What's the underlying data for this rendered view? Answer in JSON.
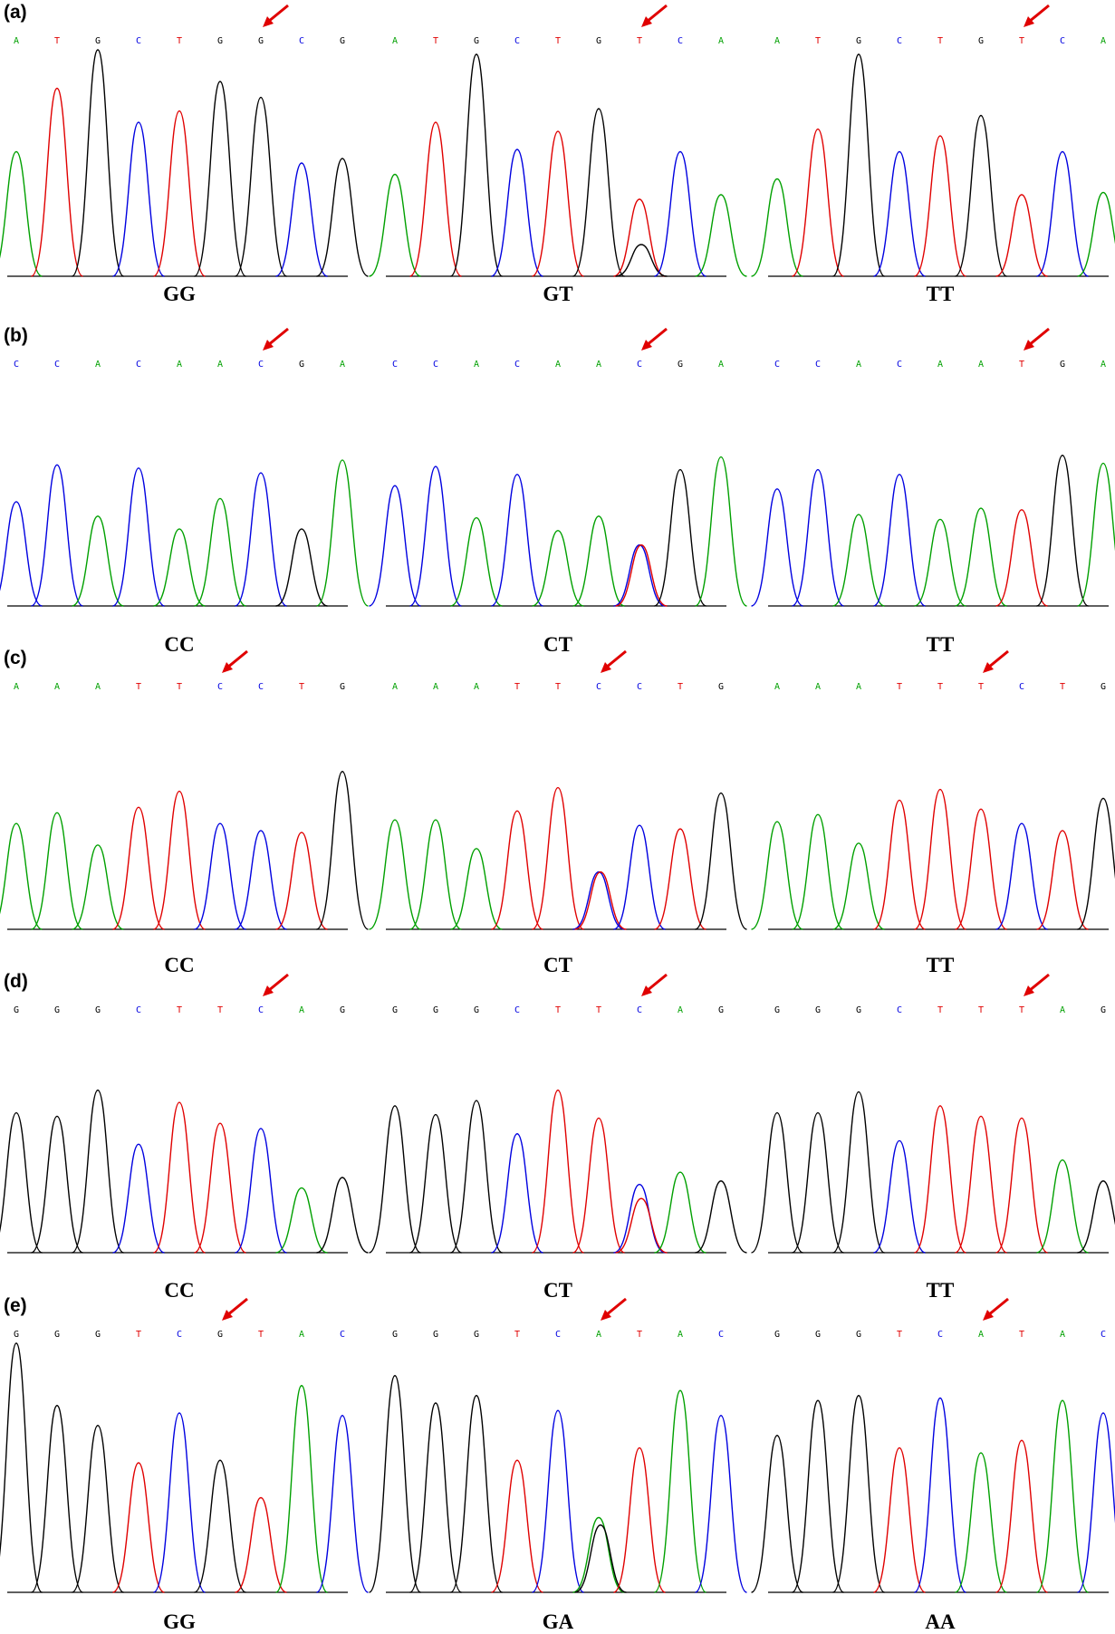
{
  "colors": {
    "A": "#00a000",
    "C": "#0000e0",
    "G": "#000000",
    "T": "#e00000",
    "arrow": "#e00000"
  },
  "rows": [
    {
      "label": "(a)",
      "panels": [
        {
          "bases": [
            "A",
            "T",
            "G",
            "C",
            "T",
            "G",
            "G",
            "C",
            "G"
          ],
          "snp": 6,
          "genotype": "GG",
          "peaks": [
            [
              "A",
              0.55
            ],
            [
              "T",
              0.83
            ],
            [
              "G",
              1.0
            ],
            [
              "C",
              0.68
            ],
            [
              "T",
              0.73
            ],
            [
              "G",
              0.86
            ],
            [
              "G",
              0.79
            ],
            [
              "C",
              0.5
            ],
            [
              "G",
              0.52
            ]
          ]
        },
        {
          "bases": [
            "A",
            "T",
            "G",
            "C",
            "T",
            "G",
            "T",
            "C",
            "A"
          ],
          "snp": 6,
          "genotype": "GT",
          "peaks": [
            [
              "A",
              0.45
            ],
            [
              "T",
              0.68
            ],
            [
              "G",
              0.98
            ],
            [
              "C",
              0.56
            ],
            [
              "T",
              0.64
            ],
            [
              "G",
              0.74
            ],
            [
              "T",
              0.34
            ],
            [
              "G",
              0.14
            ],
            [
              "C",
              0.55
            ],
            [
              "A",
              0.36
            ]
          ]
        },
        {
          "bases": [
            "A",
            "T",
            "G",
            "C",
            "T",
            "G",
            "T",
            "C",
            "A"
          ],
          "snp": 6,
          "genotype": "TT",
          "peaks": [
            [
              "A",
              0.43
            ],
            [
              "T",
              0.65
            ],
            [
              "G",
              0.98
            ],
            [
              "C",
              0.55
            ],
            [
              "T",
              0.62
            ],
            [
              "G",
              0.71
            ],
            [
              "T",
              0.36
            ],
            [
              "C",
              0.55
            ],
            [
              "A",
              0.37
            ]
          ]
        }
      ]
    },
    {
      "label": "(b)",
      "panels": [
        {
          "bases": [
            "C",
            "C",
            "A",
            "C",
            "A",
            "A",
            "C",
            "G",
            "A"
          ],
          "snp": 6,
          "genotype": "CC",
          "peaks": [
            [
              "C",
              0.65
            ],
            [
              "C",
              0.88
            ],
            [
              "A",
              0.56
            ],
            [
              "C",
              0.86
            ],
            [
              "A",
              0.48
            ],
            [
              "A",
              0.67
            ],
            [
              "C",
              0.83
            ],
            [
              "G",
              0.48
            ],
            [
              "A",
              0.91
            ]
          ]
        },
        {
          "bases": [
            "C",
            "C",
            "A",
            "C",
            "A",
            "A",
            "C",
            "G",
            "A"
          ],
          "snp": 6,
          "genotype": "CT",
          "peaks": [
            [
              "C",
              0.75
            ],
            [
              "C",
              0.87
            ],
            [
              "A",
              0.55
            ],
            [
              "C",
              0.82
            ],
            [
              "A",
              0.47
            ],
            [
              "A",
              0.56
            ],
            [
              "C",
              0.38
            ],
            [
              "T",
              0.38
            ],
            [
              "G",
              0.85
            ],
            [
              "A",
              0.93
            ]
          ]
        },
        {
          "bases": [
            "C",
            "C",
            "A",
            "C",
            "A",
            "A",
            "T",
            "G",
            "A"
          ],
          "snp": 6,
          "genotype": "TT",
          "peaks": [
            [
              "C",
              0.73
            ],
            [
              "C",
              0.85
            ],
            [
              "A",
              0.57
            ],
            [
              "C",
              0.82
            ],
            [
              "A",
              0.54
            ],
            [
              "A",
              0.61
            ],
            [
              "T",
              0.6
            ],
            [
              "G",
              0.94
            ],
            [
              "A",
              0.89
            ]
          ]
        }
      ]
    },
    {
      "label": "(c)",
      "panels": [
        {
          "bases": [
            "A",
            "A",
            "A",
            "T",
            "T",
            "C",
            "C",
            "T",
            "G"
          ],
          "snp": 5,
          "genotype": "CC",
          "peaks": [
            [
              "A",
              0.59
            ],
            [
              "A",
              0.65
            ],
            [
              "A",
              0.47
            ],
            [
              "T",
              0.68
            ],
            [
              "T",
              0.77
            ],
            [
              "C",
              0.59
            ],
            [
              "C",
              0.55
            ],
            [
              "T",
              0.54
            ],
            [
              "G",
              0.88
            ]
          ]
        },
        {
          "bases": [
            "A",
            "A",
            "A",
            "T",
            "T",
            "C",
            "C",
            "T",
            "G"
          ],
          "snp": 5,
          "genotype": "CT",
          "peaks": [
            [
              "A",
              0.61
            ],
            [
              "A",
              0.61
            ],
            [
              "A",
              0.45
            ],
            [
              "T",
              0.66
            ],
            [
              "T",
              0.79
            ],
            [
              "C",
              0.32
            ],
            [
              "T",
              0.32
            ],
            [
              "C",
              0.58
            ],
            [
              "T",
              0.56
            ],
            [
              "G",
              0.76
            ]
          ]
        },
        {
          "bases": [
            "A",
            "A",
            "A",
            "T",
            "T",
            "T",
            "C",
            "T",
            "G"
          ],
          "snp": 5,
          "genotype": "TT",
          "peaks": [
            [
              "A",
              0.6
            ],
            [
              "A",
              0.64
            ],
            [
              "A",
              0.48
            ],
            [
              "T",
              0.72
            ],
            [
              "T",
              0.78
            ],
            [
              "T",
              0.67
            ],
            [
              "C",
              0.59
            ],
            [
              "T",
              0.55
            ],
            [
              "G",
              0.73
            ]
          ]
        }
      ]
    },
    {
      "label": "(d)",
      "panels": [
        {
          "bases": [
            "G",
            "G",
            "G",
            "C",
            "T",
            "T",
            "C",
            "A",
            "G"
          ],
          "snp": 6,
          "genotype": "CC",
          "peaks": [
            [
              "G",
              0.8
            ],
            [
              "G",
              0.78
            ],
            [
              "G",
              0.93
            ],
            [
              "C",
              0.62
            ],
            [
              "T",
              0.86
            ],
            [
              "T",
              0.74
            ],
            [
              "C",
              0.71
            ],
            [
              "A",
              0.37
            ],
            [
              "G",
              0.43
            ]
          ]
        },
        {
          "bases": [
            "G",
            "G",
            "G",
            "C",
            "T",
            "T",
            "C",
            "A",
            "G"
          ],
          "snp": 6,
          "genotype": "CT",
          "peaks": [
            [
              "G",
              0.84
            ],
            [
              "G",
              0.79
            ],
            [
              "G",
              0.87
            ],
            [
              "C",
              0.68
            ],
            [
              "T",
              0.93
            ],
            [
              "T",
              0.77
            ],
            [
              "C",
              0.39
            ],
            [
              "T",
              0.31
            ],
            [
              "A",
              0.46
            ],
            [
              "G",
              0.41
            ]
          ]
        },
        {
          "bases": [
            "G",
            "G",
            "G",
            "C",
            "T",
            "T",
            "T",
            "A",
            "G"
          ],
          "snp": 6,
          "genotype": "TT",
          "peaks": [
            [
              "G",
              0.8
            ],
            [
              "G",
              0.8
            ],
            [
              "G",
              0.92
            ],
            [
              "C",
              0.64
            ],
            [
              "T",
              0.84
            ],
            [
              "T",
              0.78
            ],
            [
              "T",
              0.77
            ],
            [
              "A",
              0.53
            ],
            [
              "G",
              0.41
            ]
          ]
        }
      ]
    },
    {
      "label": "(e)",
      "panels": [
        {
          "bases": [
            "G",
            "G",
            "G",
            "T",
            "C",
            "G",
            "T",
            "A",
            "C"
          ],
          "snp": 5,
          "genotype": "GG",
          "peaks": [
            [
              "G",
              1.0
            ],
            [
              "G",
              0.75
            ],
            [
              "G",
              0.67
            ],
            [
              "T",
              0.52
            ],
            [
              "C",
              0.72
            ],
            [
              "G",
              0.53
            ],
            [
              "T",
              0.38
            ],
            [
              "A",
              0.83
            ],
            [
              "C",
              0.71
            ]
          ]
        },
        {
          "bases": [
            "G",
            "G",
            "G",
            "T",
            "C",
            "A",
            "T",
            "A",
            "C"
          ],
          "snp": 5,
          "genotype": "GA",
          "peaks": [
            [
              "G",
              0.87
            ],
            [
              "G",
              0.76
            ],
            [
              "G",
              0.79
            ],
            [
              "T",
              0.53
            ],
            [
              "C",
              0.73
            ],
            [
              "A",
              0.3
            ],
            [
              "G",
              0.27
            ],
            [
              "T",
              0.58
            ],
            [
              "A",
              0.81
            ],
            [
              "C",
              0.71
            ]
          ]
        },
        {
          "bases": [
            "G",
            "G",
            "G",
            "T",
            "C",
            "A",
            "T",
            "A",
            "C"
          ],
          "snp": 5,
          "genotype": "AA",
          "peaks": [
            [
              "G",
              0.63
            ],
            [
              "G",
              0.77
            ],
            [
              "G",
              0.79
            ],
            [
              "T",
              0.58
            ],
            [
              "C",
              0.78
            ],
            [
              "A",
              0.56
            ],
            [
              "T",
              0.61
            ],
            [
              "A",
              0.77
            ],
            [
              "C",
              0.72
            ]
          ]
        }
      ]
    }
  ]
}
